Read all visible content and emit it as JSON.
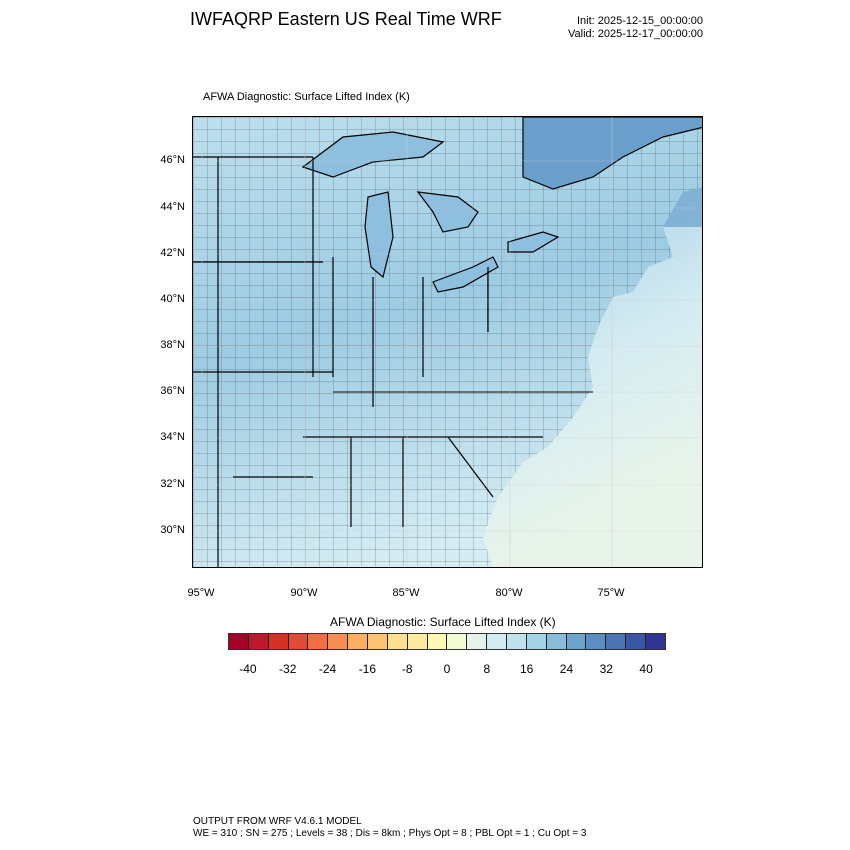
{
  "header": {
    "title": "IWFAQRP Eastern US Real Time WRF",
    "init": "Init: 2025-12-15_00:00:00",
    "valid": "Valid: 2025-12-17_00:00:00"
  },
  "plot": {
    "subtitle": "AFWA Diagnostic: Surface Lifted Index   (K)",
    "lat_labels": [
      "46°N",
      "44°N",
      "42°N",
      "40°N",
      "38°N",
      "36°N",
      "34°N",
      "32°N",
      "30°N"
    ],
    "lon_labels": [
      "95°W",
      "90°W",
      "85°W",
      "80°W",
      "75°W"
    ]
  },
  "colorbar": {
    "title": "AFWA Diagnostic: Surface Lifted Index  (K)",
    "labels": [
      "-40",
      "-32",
      "-24",
      "-16",
      "-8",
      "0",
      "8",
      "16",
      "24",
      "32",
      "40"
    ],
    "colors": [
      "#a50026",
      "#c1172b",
      "#d73027",
      "#e34a33",
      "#f46d43",
      "#f88d52",
      "#fdae61",
      "#fdc272",
      "#fee090",
      "#feeba0",
      "#fff9b5",
      "#f3fbd2",
      "#e5f3ea",
      "#d3ecf3",
      "#bde2ee",
      "#a3d3e6",
      "#87bdd9",
      "#6ba4cd",
      "#5b8fc3",
      "#4a74b4",
      "#3b56a6",
      "#313695"
    ]
  },
  "footer": {
    "line1": "OUTPUT FROM WRF V4.6.1 MODEL",
    "line2": "WE = 310 ; SN = 275 ; Levels = 38 ; Dis = 8km ; Phys Opt = 8 ; PBL Opt = 1 ; Cu Opt = 3"
  }
}
